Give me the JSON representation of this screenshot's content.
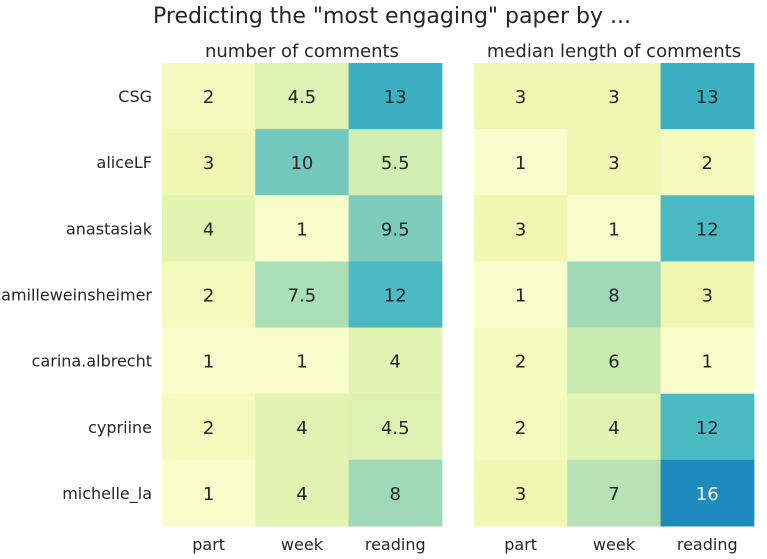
{
  "chart_data": {
    "type": "heatmap",
    "title": "Predicting the \"most engaging\" paper by ...",
    "row_labels": [
      "CSG",
      "aliceLF",
      "anastasiak",
      "camilleweinsheimer",
      "carina.albrecht",
      "cypriine",
      "michelle_la"
    ],
    "col_labels": [
      "part",
      "week",
      "reading"
    ],
    "colormap": "YlGnBu",
    "panels": [
      {
        "title": "number of comments",
        "values": [
          [
            2,
            4.5,
            13
          ],
          [
            3,
            10,
            5.5
          ],
          [
            4,
            1,
            9.5
          ],
          [
            2,
            7.5,
            12
          ],
          [
            1,
            1,
            4
          ],
          [
            2,
            4,
            4.5
          ],
          [
            1,
            4,
            8
          ]
        ],
        "labels": [
          [
            "2",
            "4.5",
            "13"
          ],
          [
            "3",
            "10",
            "5.5"
          ],
          [
            "4",
            "1",
            "9.5"
          ],
          [
            "2",
            "7.5",
            "12"
          ],
          [
            "1",
            "1",
            "4"
          ],
          [
            "2",
            "4",
            "4.5"
          ],
          [
            "1",
            "4",
            "8"
          ]
        ]
      },
      {
        "title": "median length of comments",
        "values": [
          [
            3,
            3,
            13
          ],
          [
            1,
            3,
            2
          ],
          [
            3,
            1,
            12
          ],
          [
            1,
            8,
            3
          ],
          [
            2,
            6,
            1
          ],
          [
            2,
            4,
            12
          ],
          [
            3,
            7,
            16
          ]
        ],
        "labels": [
          [
            "3",
            "3",
            "13"
          ],
          [
            "1",
            "3",
            "2"
          ],
          [
            "3",
            "1",
            "12"
          ],
          [
            "1",
            "8",
            "3"
          ],
          [
            "2",
            "6",
            "1"
          ],
          [
            "2",
            "4",
            "12"
          ],
          [
            "3",
            "7",
            "16"
          ]
        ]
      }
    ]
  }
}
